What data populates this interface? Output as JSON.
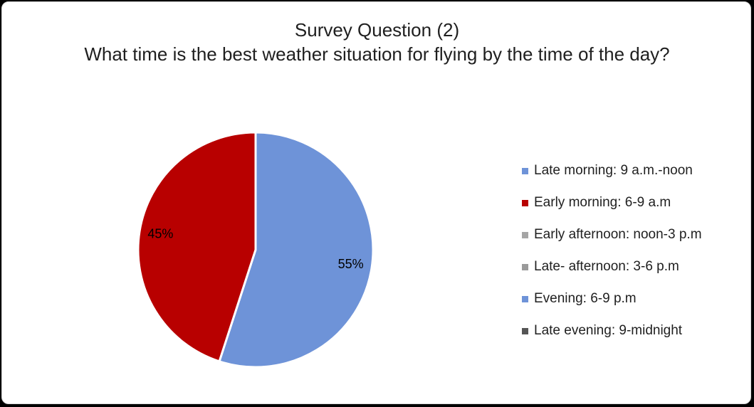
{
  "chart_data": {
    "type": "pie",
    "title": "Survey Question (2)",
    "subtitle": "What time is the best weather situation for flying by the time of the day?",
    "slices": [
      {
        "label": "Late morning: 9 a.m.-noon",
        "value": 55,
        "color": "#6e93d8",
        "data_label": "55%"
      },
      {
        "label": "Early morning: 6-9 a.m",
        "value": 45,
        "color": "#b80000",
        "data_label": "45%"
      },
      {
        "label": "Early afternoon: noon-3 p.m",
        "value": 0,
        "color": "#a5a5a5",
        "data_label": ""
      },
      {
        "label": "Late- afternoon: 3-6 p.m",
        "value": 0,
        "color": "#9a9a9a",
        "data_label": ""
      },
      {
        "label": "Evening: 6-9 p.m",
        "value": 0,
        "color": "#6e93d8",
        "data_label": ""
      },
      {
        "label": "Late evening: 9-midnight",
        "value": 0,
        "color": "#555555",
        "data_label": ""
      }
    ],
    "legend_position": "right"
  }
}
